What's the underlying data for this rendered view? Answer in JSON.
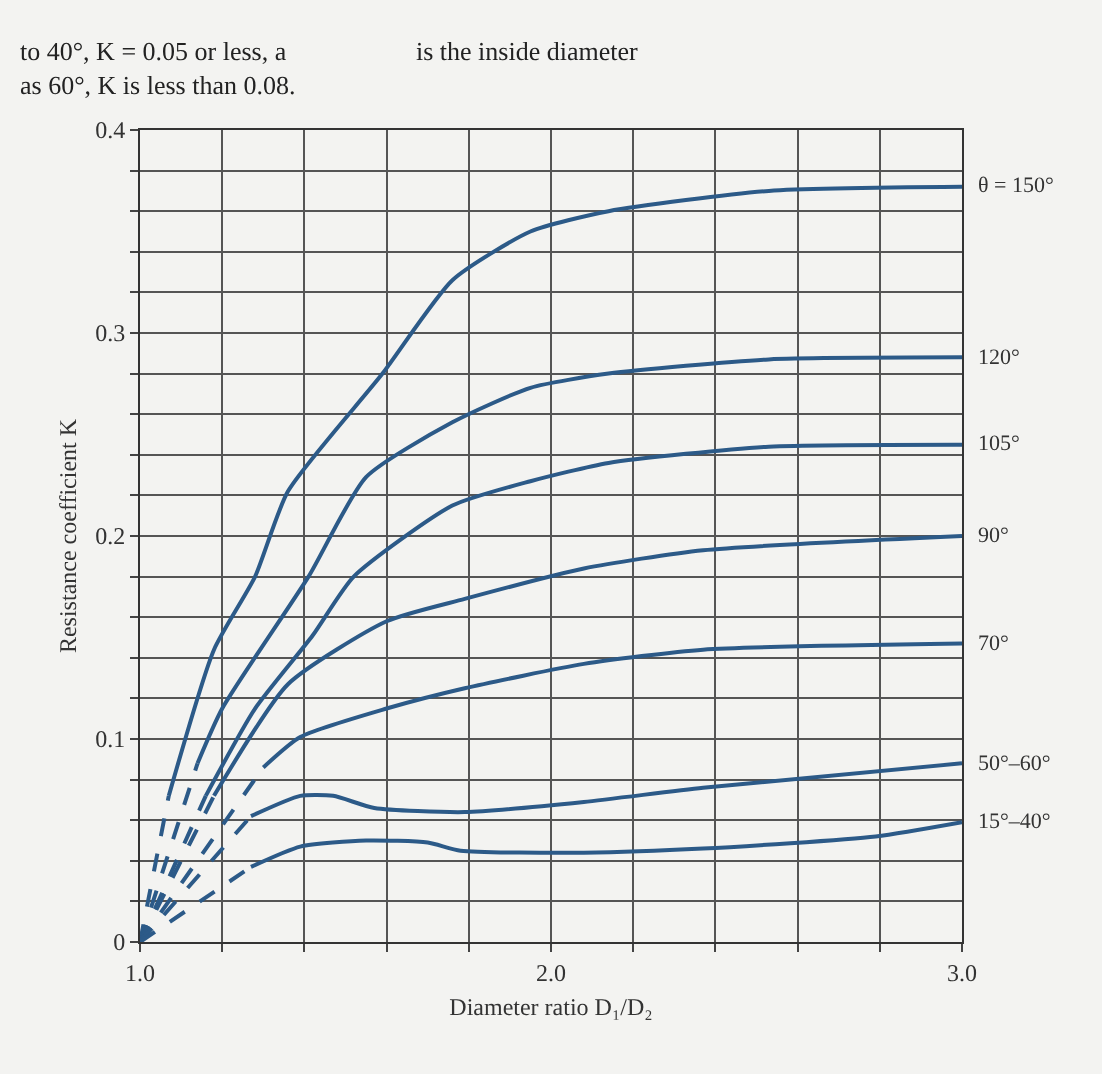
{
  "chart_data": {
    "type": "line",
    "xlabel": "Diameter ratio D₁/D₂",
    "ylabel": "Resistance coefficient K",
    "annotations": [
      "to 40°, K = 0.05 or less, a",
      "as 60°, K is less than 0.08.",
      "is the inside diameter"
    ],
    "xlim": [
      1.0,
      3.0
    ],
    "xticks": [
      {
        "value": 1,
        "label": "1.0"
      },
      {
        "value": 1.2,
        "label": null
      },
      {
        "value": 1.4,
        "label": null
      },
      {
        "value": 1.6,
        "label": null
      },
      {
        "value": 1.8,
        "label": null
      },
      {
        "value": 2,
        "label": "2.0"
      },
      {
        "value": 2.2,
        "label": null
      },
      {
        "value": 2.4,
        "label": null
      },
      {
        "value": 2.6,
        "label": null
      },
      {
        "value": 2.8,
        "label": null
      },
      {
        "value": 3,
        "label": "3.0"
      }
    ],
    "ylim": [
      0,
      0.4
    ],
    "yticks": [
      0,
      {
        "value": 0.02,
        "label": null
      },
      {
        "value": 0.04,
        "label": null
      },
      {
        "value": 0.06,
        "label": null
      },
      {
        "value": 0.08,
        "label": null
      },
      0.1,
      {
        "value": 0.12,
        "label": null
      },
      {
        "value": 0.14,
        "label": null
      },
      {
        "value": 0.16,
        "label": null
      },
      {
        "value": 0.18,
        "label": null
      },
      0.2,
      {
        "value": 0.22,
        "label": null
      },
      {
        "value": 0.24,
        "label": null
      },
      {
        "value": 0.26,
        "label": null
      },
      {
        "value": 0.28,
        "label": null
      },
      0.3,
      {
        "value": 0.32,
        "label": null
      },
      {
        "value": 0.34,
        "label": null
      },
      {
        "value": 0.36,
        "label": null
      },
      {
        "value": 0.38,
        "label": null
      },
      0.4
    ],
    "grid": true,
    "legend": false,
    "marker": "none",
    "series": [
      {
        "name": "θ = 150°",
        "color": "#2c5a88",
        "line_style": "solid",
        "x": [
          1.07,
          1.18,
          1.28,
          1.36,
          1.59,
          1.76,
          1.95,
          2.14,
          2.53,
          3.0
        ],
        "values": [
          0.072,
          0.144,
          0.18,
          0.222,
          0.28,
          0.326,
          0.35,
          0.36,
          0.37,
          0.372
        ]
      },
      {
        "color": "#2c5a88",
        "line_style": "dashed",
        "x": [
          1.0,
          1.07
        ],
        "values": [
          0,
          0.072
        ]
      },
      {
        "name": "120°",
        "color": "#2c5a88",
        "line_style": "solid",
        "x": [
          1.14,
          1.2,
          1.41,
          1.55,
          1.76,
          1.95,
          2.14,
          2.53,
          3.0
        ],
        "values": [
          0.088,
          0.115,
          0.18,
          0.229,
          0.256,
          0.273,
          0.28,
          0.287,
          0.288
        ]
      },
      {
        "color": "#2c5a88",
        "line_style": "dashed",
        "x": [
          1.0,
          1.14
        ],
        "values": [
          0,
          0.088
        ]
      },
      {
        "name": "105°",
        "color": "#2c5a88",
        "line_style": "solid",
        "x": [
          1.16,
          1.28,
          1.42,
          1.52,
          1.76,
          1.95,
          2.14,
          2.53,
          3.0
        ],
        "values": [
          0.072,
          0.115,
          0.151,
          0.18,
          0.215,
          0.227,
          0.236,
          0.244,
          0.245
        ]
      },
      {
        "color": "#2c5a88",
        "line_style": "dashed",
        "x": [
          1.0,
          1.16
        ],
        "values": [
          0,
          0.072
        ]
      },
      {
        "name": "90°",
        "color": "#2c5a88",
        "line_style": "solid",
        "x": [
          1.18,
          1.36,
          1.6,
          1.79,
          2.08,
          2.37,
          3.0
        ],
        "values": [
          0.072,
          0.127,
          0.158,
          0.169,
          0.184,
          0.193,
          0.2
        ]
      },
      {
        "color": "#2c5a88",
        "line_style": "dashed",
        "x": [
          1.0,
          1.18
        ],
        "values": [
          0,
          0.072
        ]
      },
      {
        "name": "70°",
        "color": "#2c5a88",
        "line_style": "solid",
        "x": [
          1.3,
          1.39,
          1.6,
          1.79,
          2.08,
          2.37,
          3.0
        ],
        "values": [
          0.086,
          0.101,
          0.115,
          0.125,
          0.137,
          0.144,
          0.147
        ]
      },
      {
        "color": "#2c5a88",
        "line_style": "dashed",
        "x": [
          1.0,
          1.3
        ],
        "values": [
          0,
          0.086
        ]
      },
      {
        "name": "50°–60°",
        "color": "#2c5a88",
        "line_style": "solid",
        "x": [
          1.27,
          1.39,
          1.47,
          1.57,
          1.79,
          2.08,
          2.37,
          3.0
        ],
        "values": [
          0.062,
          0.072,
          0.072,
          0.066,
          0.064,
          0.069,
          0.076,
          0.088
        ]
      },
      {
        "color": "#2c5a88",
        "line_style": "dashed",
        "x": [
          1.0,
          1.27
        ],
        "values": [
          0,
          0.062
        ]
      },
      {
        "name": "15°–40°",
        "color": "#2c5a88",
        "line_style": "solid",
        "x": [
          1.27,
          1.39,
          1.55,
          1.7,
          1.78,
          2.08,
          2.37,
          2.79,
          3.0
        ],
        "values": [
          0.037,
          0.047,
          0.05,
          0.049,
          0.045,
          0.044,
          0.046,
          0.052,
          0.059
        ]
      },
      {
        "color": "#2c5a88",
        "line_style": "dashed",
        "x": [
          1.0,
          1.27
        ],
        "values": [
          0,
          0.037
        ]
      }
    ]
  }
}
